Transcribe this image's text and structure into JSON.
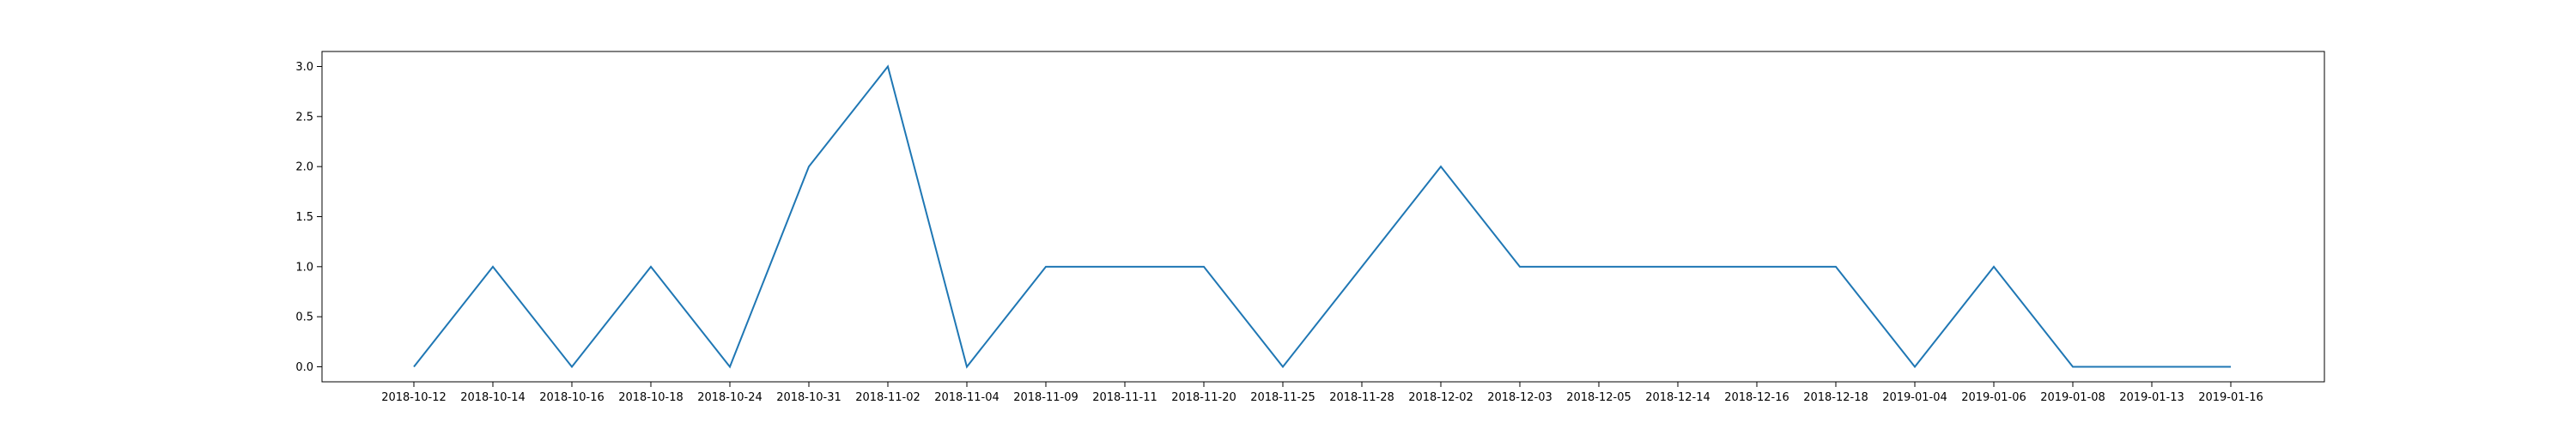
{
  "chart_data": {
    "type": "line",
    "title": "",
    "xlabel": "",
    "ylabel": "",
    "categories": [
      "2018-10-12",
      "2018-10-14",
      "2018-10-16",
      "2018-10-18",
      "2018-10-24",
      "2018-10-31",
      "2018-11-02",
      "2018-11-04",
      "2018-11-09",
      "2018-11-11",
      "2018-11-20",
      "2018-11-25",
      "2018-11-28",
      "2018-12-02",
      "2018-12-03",
      "2018-12-05",
      "2018-12-14",
      "2018-12-16",
      "2018-12-18",
      "2019-01-04",
      "2019-01-06",
      "2019-01-08",
      "2019-01-13",
      "2019-01-16"
    ],
    "series": [
      {
        "values": [
          0,
          1,
          0,
          1,
          0,
          2,
          3,
          0,
          1,
          1,
          1,
          0,
          1,
          2,
          1,
          1,
          1,
          1,
          1,
          0,
          1,
          0,
          0,
          0
        ]
      }
    ],
    "ylim": [
      -0.15,
      3.15
    ],
    "yticks": [
      "0.0",
      "0.5",
      "1.0",
      "1.5",
      "2.0",
      "2.5",
      "3.0"
    ],
    "grid": false,
    "line_color": "#1f77b4"
  }
}
